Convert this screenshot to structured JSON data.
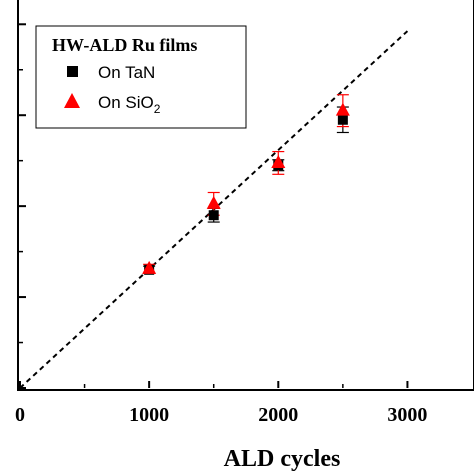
{
  "chart_data": {
    "type": "scatter",
    "title": "",
    "xlabel": "ALD cycles",
    "ylabel": "",
    "xlim": [
      0,
      3500
    ],
    "ylim": [
      0,
      8.6
    ],
    "x_ticks": [
      0,
      1000,
      2000,
      3000
    ],
    "x_tick_labels": [
      "0",
      "1000",
      "2000",
      "3000"
    ],
    "y_ticks": [
      0,
      2,
      4,
      6,
      8
    ],
    "grid": false,
    "legend": {
      "title": "HW-ALD Ru films",
      "placement": "top-left",
      "entries": [
        {
          "label": "On TaN",
          "marker": "square",
          "color": "#000000"
        },
        {
          "label": "On SiO",
          "subscript": "2",
          "marker": "triangle",
          "color": "#ff0000"
        }
      ]
    },
    "series": [
      {
        "name": "On TaN",
        "marker": "square",
        "color": "#000000",
        "errorbar_color": "#000000",
        "points": [
          {
            "x": 1000,
            "y": 2.6,
            "err": 0.08
          },
          {
            "x": 1500,
            "y": 3.8,
            "err": 0.15
          },
          {
            "x": 2000,
            "y": 4.9,
            "err": 0.12
          },
          {
            "x": 2500,
            "y": 5.9,
            "err": 0.28
          }
        ]
      },
      {
        "name": "On SiO2",
        "marker": "triangle",
        "color": "#ff0000",
        "errorbar_color": "#ff0000",
        "points": [
          {
            "x": 1000,
            "y": 2.62,
            "err": 0.1
          },
          {
            "x": 1500,
            "y": 4.05,
            "err": 0.25
          },
          {
            "x": 2000,
            "y": 4.95,
            "err": 0.25
          },
          {
            "x": 2500,
            "y": 6.1,
            "err": 0.35
          }
        ]
      }
    ],
    "fit_line": {
      "style": "dashed",
      "color": "#000000",
      "from": [
        0,
        0
      ],
      "to": [
        3000,
        7.85
      ]
    }
  }
}
